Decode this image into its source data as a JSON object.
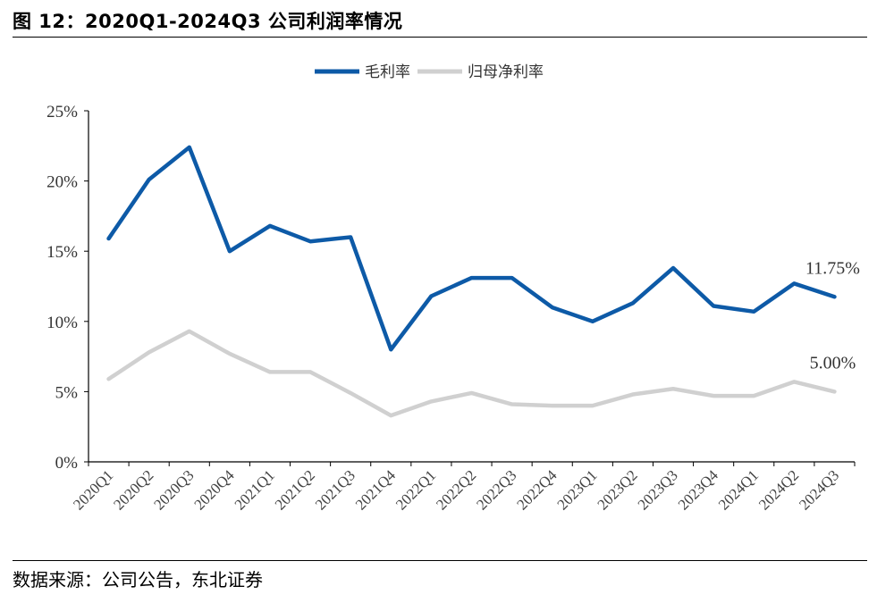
{
  "header": {
    "title": "图 12：2020Q1-2024Q3 公司利润率情况"
  },
  "footer": {
    "source": "数据来源：公司公告，东北证券"
  },
  "chart_data": {
    "type": "line",
    "title": "",
    "xlabel": "",
    "ylabel": "",
    "ylim": [
      0,
      25
    ],
    "yticks": [
      0,
      5,
      10,
      15,
      20,
      25
    ],
    "y_tick_labels": [
      "0%",
      "5%",
      "10%",
      "15%",
      "20%",
      "25%"
    ],
    "grid": false,
    "legend_position": "top-center",
    "categories": [
      "2020Q1",
      "2020Q2",
      "2020Q3",
      "2020Q4",
      "2021Q1",
      "2021Q2",
      "2021Q3",
      "2021Q4",
      "2022Q1",
      "2022Q2",
      "2022Q3",
      "2022Q4",
      "2023Q1",
      "2023Q2",
      "2023Q3",
      "2023Q4",
      "2024Q1",
      "2024Q2",
      "2024Q3"
    ],
    "series": [
      {
        "name": "毛利率",
        "color": "#0d5aa7",
        "values": [
          15.9,
          20.1,
          22.4,
          15.0,
          16.8,
          15.7,
          16.0,
          8.0,
          11.8,
          13.1,
          13.1,
          11.0,
          10.0,
          11.3,
          13.8,
          11.1,
          10.7,
          12.7,
          11.75
        ],
        "end_label": "11.75%"
      },
      {
        "name": "归母净利率",
        "color": "#d0d0d0",
        "values": [
          5.9,
          7.8,
          9.3,
          7.7,
          6.4,
          6.4,
          4.9,
          3.3,
          4.3,
          4.9,
          4.1,
          4.0,
          4.0,
          4.8,
          5.2,
          4.7,
          4.7,
          5.7,
          5.0
        ],
        "end_label": "5.00%"
      }
    ]
  }
}
